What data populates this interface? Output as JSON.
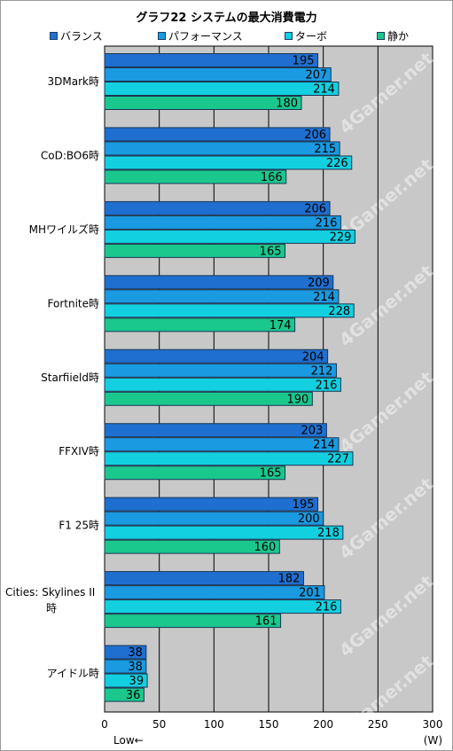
{
  "chart_data": {
    "type": "bar",
    "orientation": "horizontal",
    "title": "グラフ22 システムの最大消費電力",
    "categories": [
      "3DMark時",
      "CoD:BO6時",
      "MHワイルズ時",
      "Fortnite時",
      "Starfiield時",
      "FFXIV時",
      "F1 25時",
      "Cities: Skylines II 時",
      "アイドル時"
    ],
    "series": [
      {
        "name": "バランス",
        "color": "#1f6fd0",
        "values": [
          195,
          206,
          206,
          209,
          204,
          203,
          195,
          182,
          38
        ]
      },
      {
        "name": "パフォーマンス",
        "color": "#1a9ae0",
        "values": [
          207,
          215,
          216,
          214,
          212,
          214,
          200,
          201,
          38
        ]
      },
      {
        "name": "ターボ",
        "color": "#12d0e0",
        "values": [
          214,
          226,
          229,
          228,
          216,
          227,
          218,
          216,
          39
        ]
      },
      {
        "name": "静か",
        "color": "#1ac88e",
        "values": [
          180,
          166,
          165,
          174,
          190,
          165,
          160,
          161,
          36
        ]
      }
    ],
    "xlim": [
      0,
      300
    ],
    "xticks": [
      "0",
      "50",
      "100",
      "150",
      "200",
      "250",
      "300"
    ],
    "xunit": "(W)",
    "note": "Low←",
    "grid": true,
    "legend_position": "top",
    "plot_background": "#c8c8c8",
    "watermark": "4Gamer.net"
  }
}
